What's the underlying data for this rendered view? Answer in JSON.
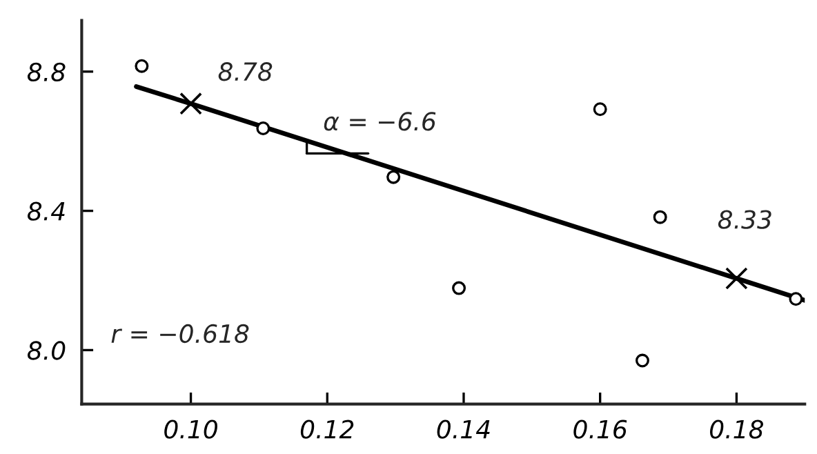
{
  "chart_data": {
    "type": "scatter",
    "xlim": [
      0.084,
      0.19
    ],
    "ylim": [
      7.845,
      8.947
    ],
    "xticks": [
      {
        "value": 0.1,
        "label": "0.10"
      },
      {
        "value": 0.12,
        "label": "0.12"
      },
      {
        "value": 0.14,
        "label": "0.14"
      },
      {
        "value": 0.16,
        "label": "0.16"
      },
      {
        "value": 0.18,
        "label": "0.18"
      }
    ],
    "yticks": [
      {
        "value": 8.0,
        "label": "8.0"
      },
      {
        "value": 8.4,
        "label": "8.4"
      },
      {
        "value": 8.8,
        "label": "8.8"
      }
    ],
    "grid": false,
    "legend": false,
    "series": [
      {
        "marker": "circle",
        "color": "#000000",
        "x": [
          0.0928,
          0.1106,
          0.1297,
          0.1393,
          0.16,
          0.1688,
          0.1662,
          0.1887
        ],
        "values": [
          8.816,
          8.637,
          8.497,
          8.178,
          8.692,
          8.382,
          7.97,
          8.147
        ]
      },
      {
        "type": "line",
        "marker": "none",
        "line_style": "solid",
        "color": "#000000",
        "x": [
          0.092,
          0.1,
          0.18,
          0.19
        ],
        "values": [
          8.757,
          8.708,
          8.206,
          8.143
        ]
      },
      {
        "type": "scatter",
        "marker": "cross",
        "color": "#000000",
        "x": [
          0.1,
          0.18
        ],
        "values": [
          8.708,
          8.206
        ]
      }
    ],
    "annotations": [
      {
        "text": "8.78",
        "x": 0.1,
        "y": 8.708
      },
      {
        "text": "8.33",
        "x": 0.18,
        "y": 8.206
      },
      {
        "text": "α = −6.6",
        "x": 0.125,
        "y": 8.565
      },
      "r = −0.618"
    ]
  }
}
